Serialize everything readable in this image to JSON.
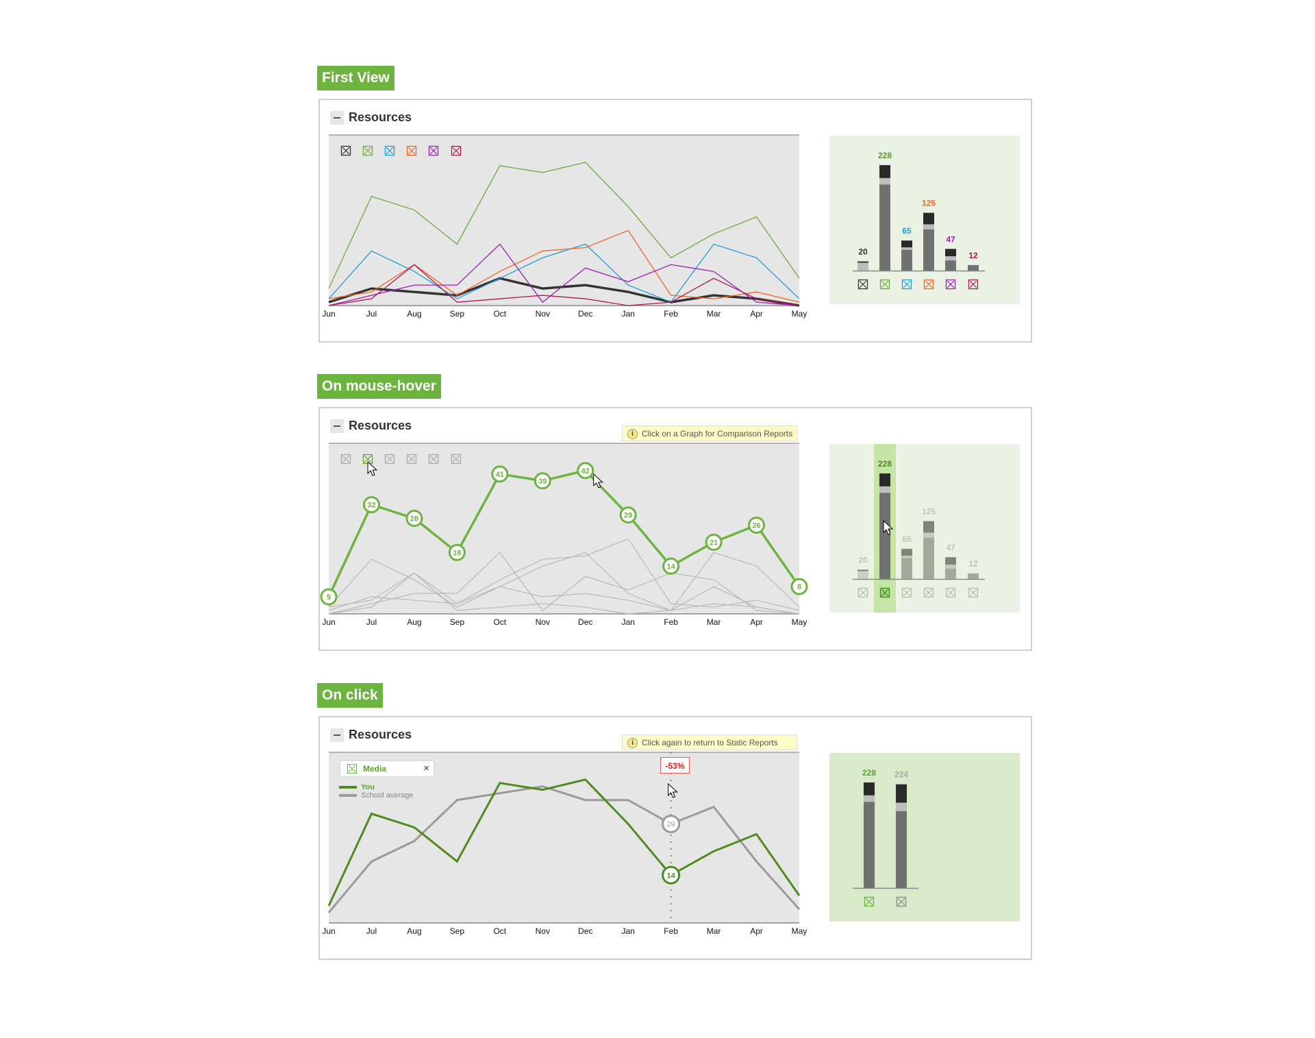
{
  "panel_title": "Resources",
  "sections": [
    {
      "label": "First View"
    },
    {
      "label": "On mouse-hover",
      "hint": "Click on a Graph for Comparison Reports"
    },
    {
      "label": "On click",
      "hint": "Click again to return to Static Reports",
      "filter_label": "Media",
      "legend": [
        "You",
        "School average"
      ],
      "change": "-53%"
    }
  ],
  "colors": {
    "black": "#333333",
    "green": "#6aaa3a",
    "blue": "#1f9bd7",
    "orange": "#f26522",
    "purple": "#9b1fb5",
    "crimson": "#b0164f",
    "accent": "#6db33f",
    "dark_green": "#4e8a1e",
    "gray": "#9a9a9a"
  },
  "chart_data": [
    {
      "type": "line",
      "state": "first view",
      "categories": [
        "Jun",
        "Jul",
        "Aug",
        "Sep",
        "Oct",
        "Nov",
        "Dec",
        "Jan",
        "Feb",
        "Mar",
        "Apr",
        "May"
      ],
      "ylim": [
        0,
        50
      ],
      "series": [
        {
          "color": "#333333",
          "values": [
            1,
            5,
            4,
            3,
            8,
            5,
            6,
            4,
            1,
            3,
            2,
            0
          ]
        },
        {
          "color": "#6aaa3a",
          "values": [
            5,
            32,
            28,
            18,
            41,
            39,
            42,
            29,
            14,
            21,
            26,
            8
          ]
        },
        {
          "color": "#1f9bd7",
          "values": [
            2,
            16,
            10,
            2,
            8,
            14,
            18,
            6,
            1,
            18,
            14,
            2
          ]
        },
        {
          "color": "#f26522",
          "values": [
            2,
            4,
            12,
            3,
            10,
            16,
            17,
            22,
            3,
            2,
            4,
            1
          ]
        },
        {
          "color": "#9b1fb5",
          "values": [
            0,
            3,
            6,
            6,
            18,
            1,
            11,
            7,
            12,
            10,
            1,
            0
          ]
        },
        {
          "color": "#b0164f",
          "values": [
            0,
            2,
            12,
            1,
            2,
            3,
            2,
            0,
            1,
            8,
            2,
            0
          ]
        }
      ]
    },
    {
      "type": "bar",
      "state": "first view",
      "values": [
        20,
        228,
        65,
        125,
        47,
        12
      ],
      "segments": [
        [
          3,
          17,
          0
        ],
        [
          28,
          14,
          186
        ],
        [
          15,
          5,
          45
        ],
        [
          25,
          11,
          89
        ],
        [
          16,
          9,
          22
        ],
        [
          0,
          0,
          12
        ]
      ],
      "label_colors": [
        "#333333",
        "#5a9a2c",
        "#1f9bd7",
        "#f26522",
        "#9b1fb5",
        "#b0164f"
      ]
    },
    {
      "type": "line",
      "state": "hover",
      "categories": [
        "Jun",
        "Jul",
        "Aug",
        "Sep",
        "Oct",
        "Nov",
        "Dec",
        "Jan",
        "Feb",
        "Mar",
        "Apr",
        "May"
      ],
      "ylim": [
        0,
        50
      ],
      "highlight": 1,
      "series": [
        {
          "color": "#333333",
          "values": [
            1,
            5,
            4,
            3,
            8,
            5,
            6,
            4,
            1,
            3,
            2,
            0
          ]
        },
        {
          "color": "#6db33f",
          "values": [
            5,
            32,
            28,
            18,
            41,
            39,
            42,
            29,
            14,
            21,
            26,
            8
          ],
          "data_labels": true
        },
        {
          "color": "#1f9bd7",
          "values": [
            2,
            16,
            10,
            2,
            8,
            14,
            18,
            6,
            1,
            18,
            14,
            2
          ]
        },
        {
          "color": "#f26522",
          "values": [
            2,
            4,
            12,
            3,
            10,
            16,
            17,
            22,
            3,
            2,
            4,
            1
          ]
        },
        {
          "color": "#9b1fb5",
          "values": [
            0,
            3,
            6,
            6,
            18,
            1,
            11,
            7,
            12,
            10,
            1,
            0
          ]
        },
        {
          "color": "#b0164f",
          "values": [
            0,
            2,
            12,
            1,
            2,
            3,
            2,
            0,
            1,
            8,
            2,
            0
          ]
        }
      ]
    },
    {
      "type": "bar",
      "state": "hover",
      "highlight": 1,
      "values": [
        20,
        228,
        65,
        125,
        47,
        12
      ],
      "segments": [
        [
          3,
          17,
          0
        ],
        [
          28,
          14,
          186
        ],
        [
          15,
          5,
          45
        ],
        [
          25,
          11,
          89
        ],
        [
          16,
          9,
          22
        ],
        [
          0,
          0,
          12
        ]
      ]
    },
    {
      "type": "line",
      "state": "click",
      "categories": [
        "Jun",
        "Jul",
        "Aug",
        "Sep",
        "Oct",
        "Nov",
        "Dec",
        "Jan",
        "Feb",
        "Mar",
        "Apr",
        "May"
      ],
      "ylim": [
        0,
        50
      ],
      "selected": "Feb",
      "series": [
        {
          "name": "You",
          "color": "#4e8a1e",
          "values": [
            5,
            32,
            28,
            18,
            41,
            39,
            42,
            29,
            14,
            21,
            26,
            8
          ]
        },
        {
          "name": "School average",
          "color": "#9a9a9a",
          "values": [
            3,
            18,
            24,
            36,
            38,
            40,
            36,
            36,
            29,
            34,
            18,
            4
          ]
        }
      ]
    },
    {
      "type": "bar",
      "state": "click",
      "values": [
        228,
        224
      ],
      "segments": [
        [
          28,
          14,
          186
        ],
        [
          40,
          18,
          166
        ]
      ],
      "label_colors": [
        "#5aa52c",
        "#aaaaaa"
      ],
      "icon_colors": [
        "#6db33f",
        "#888888"
      ]
    }
  ]
}
